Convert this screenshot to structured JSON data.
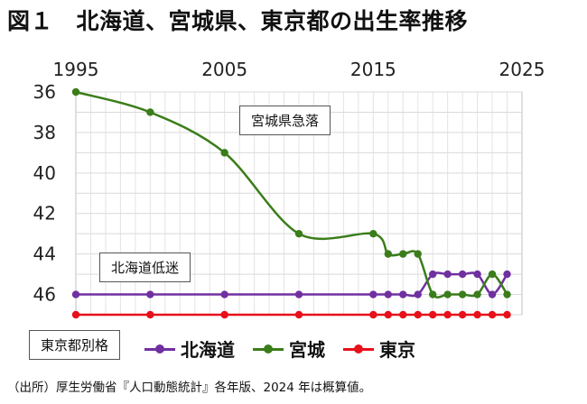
{
  "title": "図１　北海道、宮城県、東京都の出生率推移",
  "source": "（出所）厚生労働省『人口動態統計』各年版、2024 年は概算値。",
  "annotations": {
    "miyagi": "宮城県急落",
    "hokkaido": "北海道低迷",
    "tokyo": "東京都別格"
  },
  "chart_data": {
    "type": "line",
    "title": "",
    "xlabel": "",
    "ylabel": "",
    "x_ticks": [
      1995,
      2005,
      2015,
      2025
    ],
    "y_ticks": [
      36,
      38,
      40,
      42,
      44,
      46
    ],
    "xlim": [
      1995,
      2025
    ],
    "ylim": [
      36,
      47
    ],
    "y_inverted": true,
    "x_axis_position": "top",
    "grid": true,
    "legend_position": "bottom",
    "series": [
      {
        "name": "北海道",
        "color": "#7030a0",
        "points": [
          [
            1995,
            46
          ],
          [
            2000,
            46
          ],
          [
            2005,
            46
          ],
          [
            2010,
            46
          ],
          [
            2015,
            46
          ],
          [
            2016,
            46
          ],
          [
            2017,
            46
          ],
          [
            2018,
            46
          ],
          [
            2019,
            45
          ],
          [
            2020,
            45
          ],
          [
            2021,
            45
          ],
          [
            2022,
            45
          ],
          [
            2023,
            46
          ],
          [
            2024,
            45
          ]
        ]
      },
      {
        "name": "宮城",
        "color": "#3a7d1a",
        "points": [
          [
            1995,
            36
          ],
          [
            2000,
            37
          ],
          [
            2005,
            39
          ],
          [
            2010,
            43
          ],
          [
            2015,
            43
          ],
          [
            2016,
            44
          ],
          [
            2017,
            44
          ],
          [
            2018,
            44
          ],
          [
            2019,
            46
          ],
          [
            2020,
            46
          ],
          [
            2021,
            46
          ],
          [
            2022,
            46
          ],
          [
            2023,
            45
          ],
          [
            2024,
            46
          ]
        ]
      },
      {
        "name": "東京",
        "color": "#e8101a",
        "points": [
          [
            1995,
            47
          ],
          [
            2000,
            47
          ],
          [
            2005,
            47
          ],
          [
            2010,
            47
          ],
          [
            2015,
            47
          ],
          [
            2016,
            47
          ],
          [
            2017,
            47
          ],
          [
            2018,
            47
          ],
          [
            2019,
            47
          ],
          [
            2020,
            47
          ],
          [
            2021,
            47
          ],
          [
            2022,
            47
          ],
          [
            2023,
            47
          ],
          [
            2024,
            47
          ]
        ]
      }
    ]
  }
}
